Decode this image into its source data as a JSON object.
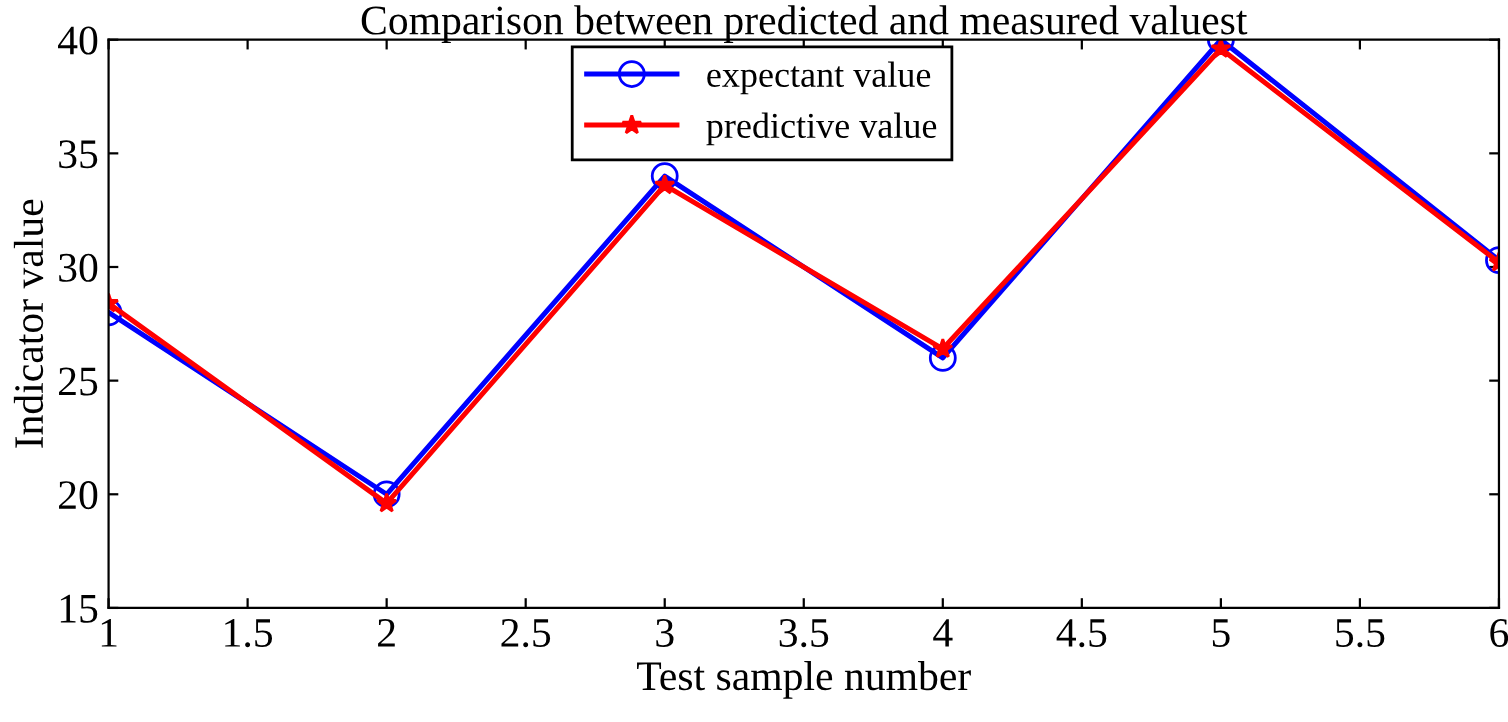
{
  "chart_data": {
    "type": "line",
    "title": "Comparison between predicted and measured valuest",
    "xlabel": "Test sample number",
    "ylabel": "Indicator value",
    "x": [
      1,
      2,
      3,
      4,
      5,
      6
    ],
    "series": [
      {
        "name": "expectant value",
        "color": "#0000ff",
        "marker": "circle",
        "values": [
          28,
          20,
          34,
          26,
          40,
          30.3
        ]
      },
      {
        "name": "predictive value",
        "color": "#ff0000",
        "marker": "star",
        "values": [
          28.4,
          19.6,
          33.6,
          26.4,
          39.6,
          30.2
        ]
      }
    ],
    "xlim": [
      1,
      6
    ],
    "xticks": [
      1,
      1.5,
      2,
      2.5,
      3,
      3.5,
      4,
      4.5,
      5,
      5.5,
      6
    ],
    "ylim": [
      15,
      40
    ],
    "yticks": [
      15,
      20,
      25,
      30,
      35,
      40
    ],
    "legend": "top",
    "grid": false,
    "line_style": "solid"
  }
}
